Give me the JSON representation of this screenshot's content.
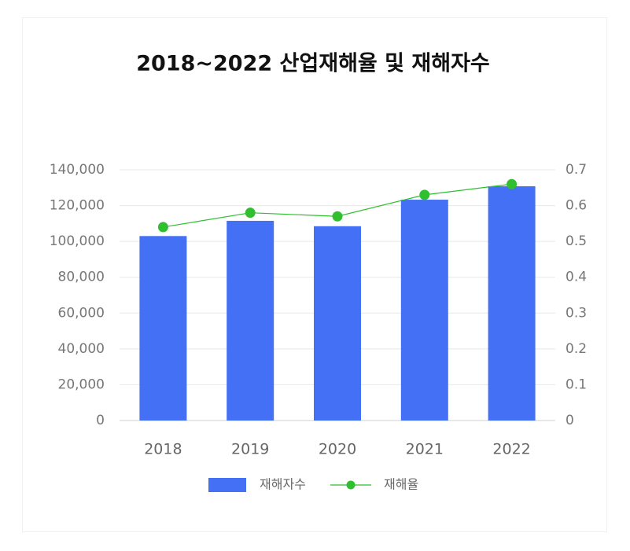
{
  "chart_data": {
    "type": "bar",
    "title": "2018~2022 산업재해율 및 재해자수",
    "categories": [
      "2018",
      "2019",
      "2020",
      "2021",
      "2022"
    ],
    "series": [
      {
        "name": "재해자수",
        "type": "bar",
        "color": "#4470f5",
        "values": [
          103000,
          111500,
          108500,
          123300,
          130800
        ]
      },
      {
        "name": "재해율",
        "type": "line",
        "axis": "y2",
        "color": "#2fbf2f",
        "values": [
          0.54,
          0.58,
          0.57,
          0.63,
          0.66
        ]
      }
    ],
    "ylim": [
      0,
      140000
    ],
    "yticks": [
      0,
      {
        "value": 20000,
        "label": "20,000"
      },
      {
        "value": 40000,
        "label": "40,000"
      },
      {
        "value": 60000,
        "label": "60,000"
      },
      {
        "value": 80000,
        "label": "80,000"
      },
      {
        "value": 100000,
        "label": "100,000"
      },
      {
        "value": 120000,
        "label": "120,000"
      },
      {
        "value": 140000,
        "label": "140,000"
      }
    ],
    "y2lim": [
      0,
      0.7
    ],
    "y2ticks": [
      0,
      0.1,
      0.2,
      0.3,
      0.4,
      0.5,
      0.6,
      0.7
    ],
    "grid": true,
    "legend": "bottom"
  }
}
